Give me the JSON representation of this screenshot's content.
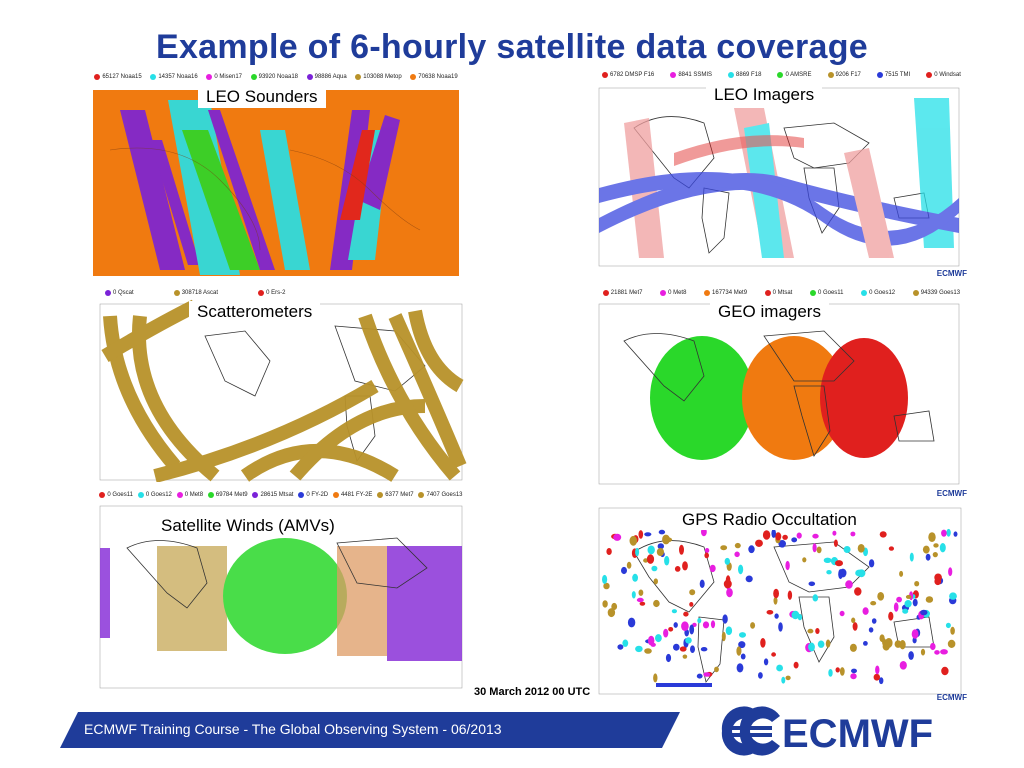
{
  "title": "Example of 6-hourly satellite data coverage",
  "panels": {
    "leo_sounders": {
      "label": "LEO Sounders",
      "legend": [
        {
          "text": "65127 Noaa15",
          "color": "#e0201e"
        },
        {
          "text": "14357 Noaa16",
          "color": "#26e0e8"
        },
        {
          "text": "0 Misen17",
          "color": "#e81ee0"
        },
        {
          "text": "93920 Noaa18",
          "color": "#2ad82a"
        },
        {
          "text": "98886 Aqua",
          "color": "#7a22d8"
        },
        {
          "text": "103088 Metop",
          "color": "#b8922a"
        },
        {
          "text": "70638 Noaa19",
          "color": "#f07a10"
        }
      ]
    },
    "leo_imagers": {
      "label": "LEO Imagers",
      "legend": [
        {
          "text": "6782 DMSP F16",
          "color": "#e0201e"
        },
        {
          "text": "8841 SSMIS",
          "color": "#e81ee0"
        },
        {
          "text": "8869 F18",
          "color": "#26e0e8"
        },
        {
          "text": "0 AMSRE",
          "color": "#2ad82a"
        },
        {
          "text": "9206 F17",
          "color": "#b8922a"
        },
        {
          "text": "7515 TMI",
          "color": "#2a3ad8"
        },
        {
          "text": "0 Windsat",
          "color": "#e0201e"
        }
      ]
    },
    "scatterometers": {
      "label": "Scatterometers",
      "legend": [
        {
          "text": "0 Qscat",
          "color": "#7a22d8"
        },
        {
          "text": "308718 Ascat",
          "color": "#b8922a"
        },
        {
          "text": "0 Ers-2",
          "color": "#e0201e"
        }
      ]
    },
    "geo_imagers": {
      "label": "GEO imagers",
      "legend": [
        {
          "text": "21881 Met7",
          "color": "#e0201e"
        },
        {
          "text": "0 Met8",
          "color": "#e81ee0"
        },
        {
          "text": "167734 Met9",
          "color": "#f07a10"
        },
        {
          "text": "0 Mtsat",
          "color": "#e0201e"
        },
        {
          "text": "0 Goes11",
          "color": "#2ad82a"
        },
        {
          "text": "0 Goes12",
          "color": "#26e0e8"
        },
        {
          "text": "94339 Goes13",
          "color": "#b8922a"
        }
      ]
    },
    "satellite_winds": {
      "label": "Satellite Winds (AMVs)",
      "legend": [
        {
          "text": "0 Goes11",
          "color": "#e0201e"
        },
        {
          "text": "0 Goes12",
          "color": "#26e0e8"
        },
        {
          "text": "0 Met8",
          "color": "#e81ee0"
        },
        {
          "text": "69784 Met9",
          "color": "#2ad82a"
        },
        {
          "text": "28615 Mtsat",
          "color": "#7a22d8"
        },
        {
          "text": "0 FY-2D",
          "color": "#2a3ad8"
        },
        {
          "text": "4481 FY-2E",
          "color": "#f07a10"
        },
        {
          "text": "6377 Met7",
          "color": "#b8922a"
        },
        {
          "text": "7407 Goes13",
          "color": "#b8922a"
        }
      ]
    },
    "gps_ro": {
      "label": "GPS Radio Occultation"
    }
  },
  "date_label": "30 March 2012 00 UTC",
  "ecmwf_small": "ECMWF",
  "footer": "ECMWF Training Course - The Global Observing System - 06/2013",
  "logo_text": "ECMWF",
  "colors": {
    "title": "#1f3c9a",
    "footer_band": "#1f3c9a",
    "logo": "#1f3c9a"
  }
}
